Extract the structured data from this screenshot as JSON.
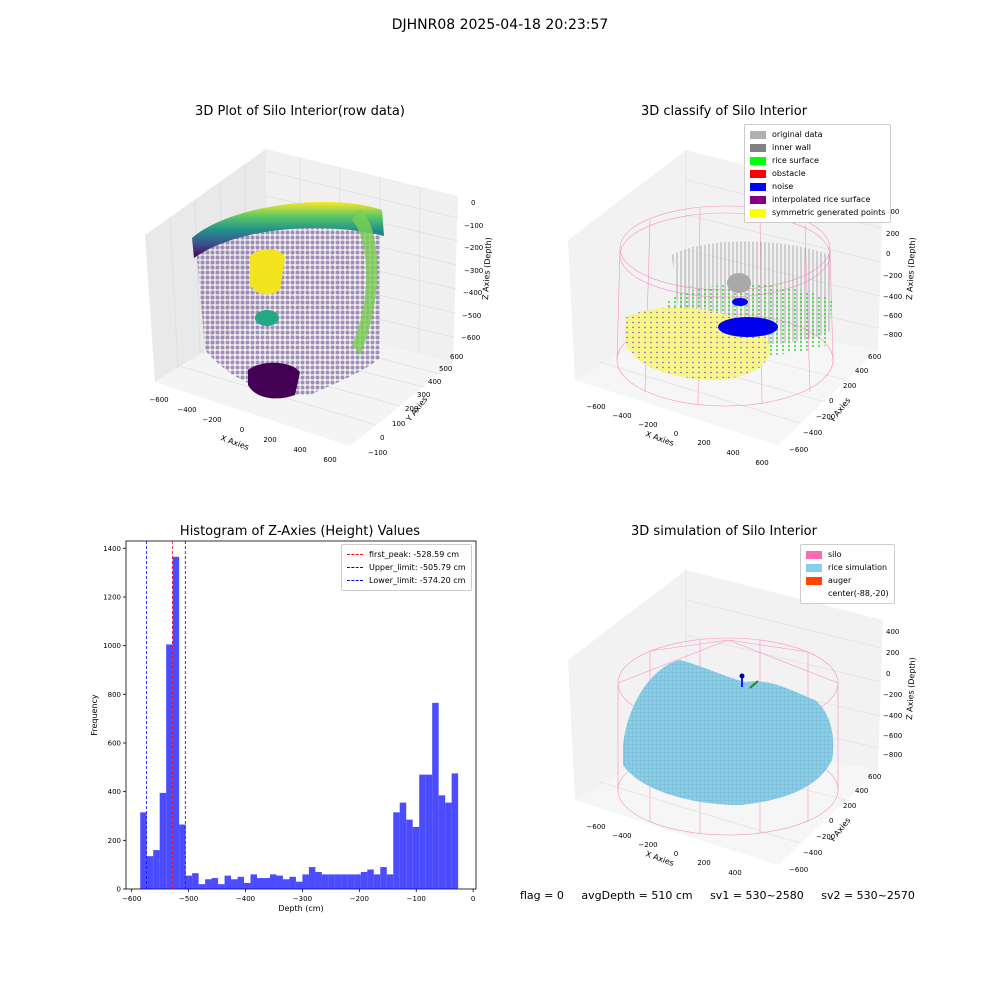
{
  "figure": {
    "suptitle": "DJHNR08 2025-04-18 20:23:57"
  },
  "panel_raw": {
    "title": "3D Plot of Silo Interior(row data)",
    "xlabel": "X Axies",
    "ylabel": "Y Axies",
    "zlabel": "Z Axies (Depth)",
    "x_ticks": [
      "−600",
      "−400",
      "−200",
      "0",
      "200",
      "400",
      "600"
    ],
    "y_ticks": [
      "−100",
      "0",
      "100",
      "200",
      "300",
      "400",
      "500",
      "600"
    ],
    "z_ticks": [
      "0",
      "−100",
      "−200",
      "−300",
      "−400",
      "−500",
      "−600"
    ]
  },
  "panel_classify": {
    "title": "3D classify of Silo Interior",
    "xlabel": "X Axies",
    "ylabel": "Y Axies",
    "zlabel": "Z Axies (Depth)",
    "x_ticks": [
      "−600",
      "−400",
      "−200",
      "0",
      "200",
      "400",
      "600"
    ],
    "y_ticks": [
      "−600",
      "−400",
      "−200",
      "0",
      "200",
      "400",
      "600"
    ],
    "z_ticks": [
      "400",
      "200",
      "0",
      "−200",
      "−400",
      "−600",
      "−800"
    ],
    "legend": [
      {
        "label": "original data",
        "color": "#b0b0b0"
      },
      {
        "label": "inner wall",
        "color": "#808080"
      },
      {
        "label": "rice surface",
        "color": "#00ff00"
      },
      {
        "label": "obstacle",
        "color": "#ff0000"
      },
      {
        "label": "noise",
        "color": "#0000ff"
      },
      {
        "label": "interpolated rice surface",
        "color": "#800080"
      },
      {
        "label": "symmetric generated points",
        "color": "#ffff00"
      }
    ]
  },
  "panel_sim": {
    "title": "3D simulation of Silo Interior",
    "xlabel": "X Axies",
    "ylabel": "Y Axies",
    "zlabel": "Z Axies (Depth)",
    "x_ticks": [
      "−600",
      "−400",
      "−200",
      "0",
      "200",
      "400"
    ],
    "y_ticks": [
      "−600",
      "−400",
      "−200",
      "0",
      "200",
      "400",
      "600"
    ],
    "z_ticks": [
      "400",
      "200",
      "0",
      "−200",
      "−400",
      "−600",
      "−800"
    ],
    "legend": [
      {
        "label": "silo",
        "color": "#ff69b4"
      },
      {
        "label": "rice simulation",
        "color": "#87ceeb"
      },
      {
        "label": "auger",
        "color": "#ff4500"
      },
      {
        "label": "center(-88,-20)",
        "color": ""
      }
    ]
  },
  "chart_data": {
    "type": "bar",
    "title": "Histogram of Z-Axies (Height) Values",
    "xlabel": "Depth (cm)",
    "ylabel": "Frequency",
    "xlim": [
      -610,
      5
    ],
    "ylim": [
      0,
      1430
    ],
    "x_ticks": [
      -600,
      -500,
      -400,
      -300,
      -200,
      -100,
      0
    ],
    "x_tick_labels": [
      "−600",
      "−500",
      "−400",
      "−300",
      "−200",
      "−100",
      "0"
    ],
    "y_ticks": [
      0,
      200,
      400,
      600,
      800,
      1000,
      1200,
      1400
    ],
    "bin_start": -585,
    "bin_width": 11.4,
    "values": [
      315,
      135,
      160,
      395,
      1005,
      1365,
      265,
      55,
      65,
      20,
      40,
      45,
      20,
      55,
      40,
      50,
      25,
      60,
      45,
      45,
      60,
      55,
      40,
      50,
      30,
      60,
      90,
      70,
      60,
      60,
      60,
      60,
      60,
      60,
      70,
      80,
      60,
      90,
      60,
      315,
      355,
      285,
      255,
      470,
      470,
      765,
      385,
      355,
      475
    ],
    "bar_color": "#0000ff",
    "vlines": [
      {
        "label": "first_peak: -528.59 cm",
        "x": -528.59,
        "color": "#ff0000"
      },
      {
        "label": "Upper_limit: -505.79 cm",
        "x": -505.79,
        "color": "#0000ff"
      },
      {
        "label": "Lower_limit: -574.20 cm",
        "x": -574.2,
        "color": "#0000ff"
      }
    ],
    "legend_position": "upper right"
  },
  "status": {
    "flag": "flag = 0",
    "avg_depth": "avgDepth = 510 cm",
    "sv1": "sv1 = 530~2580",
    "sv2": "sv2 = 530~2570"
  }
}
